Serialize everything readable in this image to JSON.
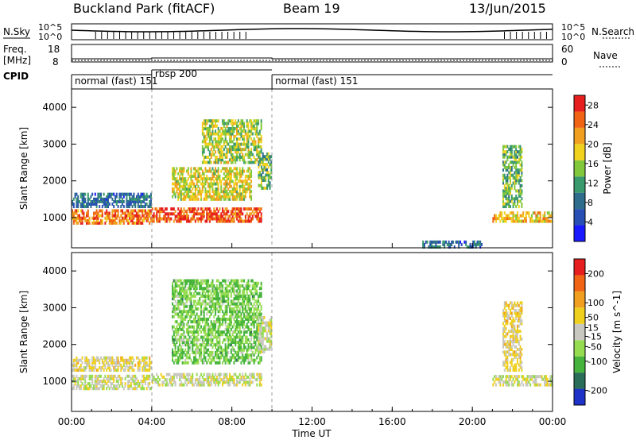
{
  "header": {
    "station": "Buckland Park (fitACF)",
    "beam": "Beam 19",
    "date": "13/Jun/2015"
  },
  "noise_panel": {
    "left_label": "N.Sky",
    "right_label": "N.Search",
    "left_ticks": [
      "10^5",
      "10^0"
    ],
    "right_ticks": [
      "10^5",
      "10^0"
    ]
  },
  "freq_panel": {
    "left_label": "Freq.",
    "left_unit": "[MHz]",
    "left_ticks": [
      "18",
      "8"
    ],
    "right_label": "Nave",
    "right_ticks": [
      "60",
      "0"
    ]
  },
  "cpid": {
    "label": "CPID",
    "segments": [
      {
        "name": "normal (fast) 151",
        "start_h": 0,
        "end_h": 4
      },
      {
        "name": "rbsp 200",
        "start_h": 4,
        "end_h": 10
      },
      {
        "name": "normal (fast) 151",
        "start_h": 10,
        "end_h": 24
      }
    ]
  },
  "x_axis": {
    "label": "Time UT",
    "ticks": [
      "00:00",
      "04:00",
      "08:00",
      "12:00",
      "16:00",
      "20:00",
      "00:00"
    ]
  },
  "chart_data": [
    {
      "type": "heatmap",
      "title": "Power",
      "ylabel": "Slant Range [km]",
      "xlabel": "Time UT",
      "xlim": [
        0,
        24
      ],
      "ylim": [
        180,
        4500
      ],
      "yticks": [
        1000,
        2000,
        3000,
        4000
      ],
      "colorbar": {
        "label": "Power [dB]",
        "ticks": [
          4,
          8,
          12,
          16,
          20,
          24,
          28
        ],
        "range": [
          0,
          30
        ],
        "colors": [
          "#1a1aff",
          "#2850b4",
          "#2e6e8c",
          "#3a9a6e",
          "#82c83c",
          "#f0d21e",
          "#f0a01e",
          "#f06414",
          "#e61e1e"
        ]
      },
      "regions": [
        {
          "t0": 0.0,
          "t1": 4.0,
          "r0": 850,
          "r1": 1250,
          "value": 24
        },
        {
          "t0": 0.0,
          "t1": 4.0,
          "r0": 1300,
          "r1": 1700,
          "value": 8
        },
        {
          "t0": 4.0,
          "t1": 9.5,
          "r0": 900,
          "r1": 1300,
          "value": 26
        },
        {
          "t0": 5.0,
          "t1": 9.0,
          "r0": 1500,
          "r1": 2400,
          "value": 18
        },
        {
          "t0": 6.5,
          "t1": 9.5,
          "r0": 2500,
          "r1": 3700,
          "value": 16
        },
        {
          "t0": 9.3,
          "t1": 10.0,
          "r0": 1800,
          "r1": 2800,
          "value": 14
        },
        {
          "t0": 17.5,
          "t1": 20.5,
          "r0": 200,
          "r1": 400,
          "value": 8
        },
        {
          "t0": 21.0,
          "t1": 24.0,
          "r0": 900,
          "r1": 1200,
          "value": 20
        },
        {
          "t0": 21.5,
          "t1": 22.5,
          "r0": 1300,
          "r1": 3000,
          "value": 14
        }
      ]
    },
    {
      "type": "heatmap",
      "title": "Velocity",
      "ylabel": "Slant Range [km]",
      "xlabel": "Time UT",
      "xlim": [
        0,
        24
      ],
      "ylim": [
        180,
        4500
      ],
      "yticks": [
        1000,
        2000,
        3000,
        4000
      ],
      "colorbar": {
        "label": "Velocity [m s^-1]",
        "ticks": [
          200,
          100,
          50,
          15,
          -15,
          -50,
          -100,
          -200
        ],
        "range": [
          -250,
          250
        ],
        "colors": [
          "#1e32c8",
          "#2a6e5a",
          "#46b43c",
          "#96dc50",
          "#c8c8c0",
          "#f0d01e",
          "#f0a01e",
          "#f06414",
          "#e61e1e"
        ]
      },
      "regions": [
        {
          "t0": 0.0,
          "t1": 4.0,
          "r0": 800,
          "r1": 1200,
          "value": 0
        },
        {
          "t0": 0.0,
          "t1": 4.0,
          "r0": 1300,
          "r1": 1700,
          "value": 30
        },
        {
          "t0": 4.0,
          "t1": 9.5,
          "r0": 900,
          "r1": 1250,
          "value": 0
        },
        {
          "t0": 5.0,
          "t1": 9.5,
          "r0": 1500,
          "r1": 3800,
          "value": -80
        },
        {
          "t0": 9.3,
          "t1": 10.0,
          "r0": 1800,
          "r1": 2800,
          "value": 0
        },
        {
          "t0": 21.0,
          "t1": 24.0,
          "r0": 900,
          "r1": 1200,
          "value": 0
        },
        {
          "t0": 21.5,
          "t1": 22.5,
          "r0": 1300,
          "r1": 3200,
          "value": 40
        }
      ]
    }
  ]
}
